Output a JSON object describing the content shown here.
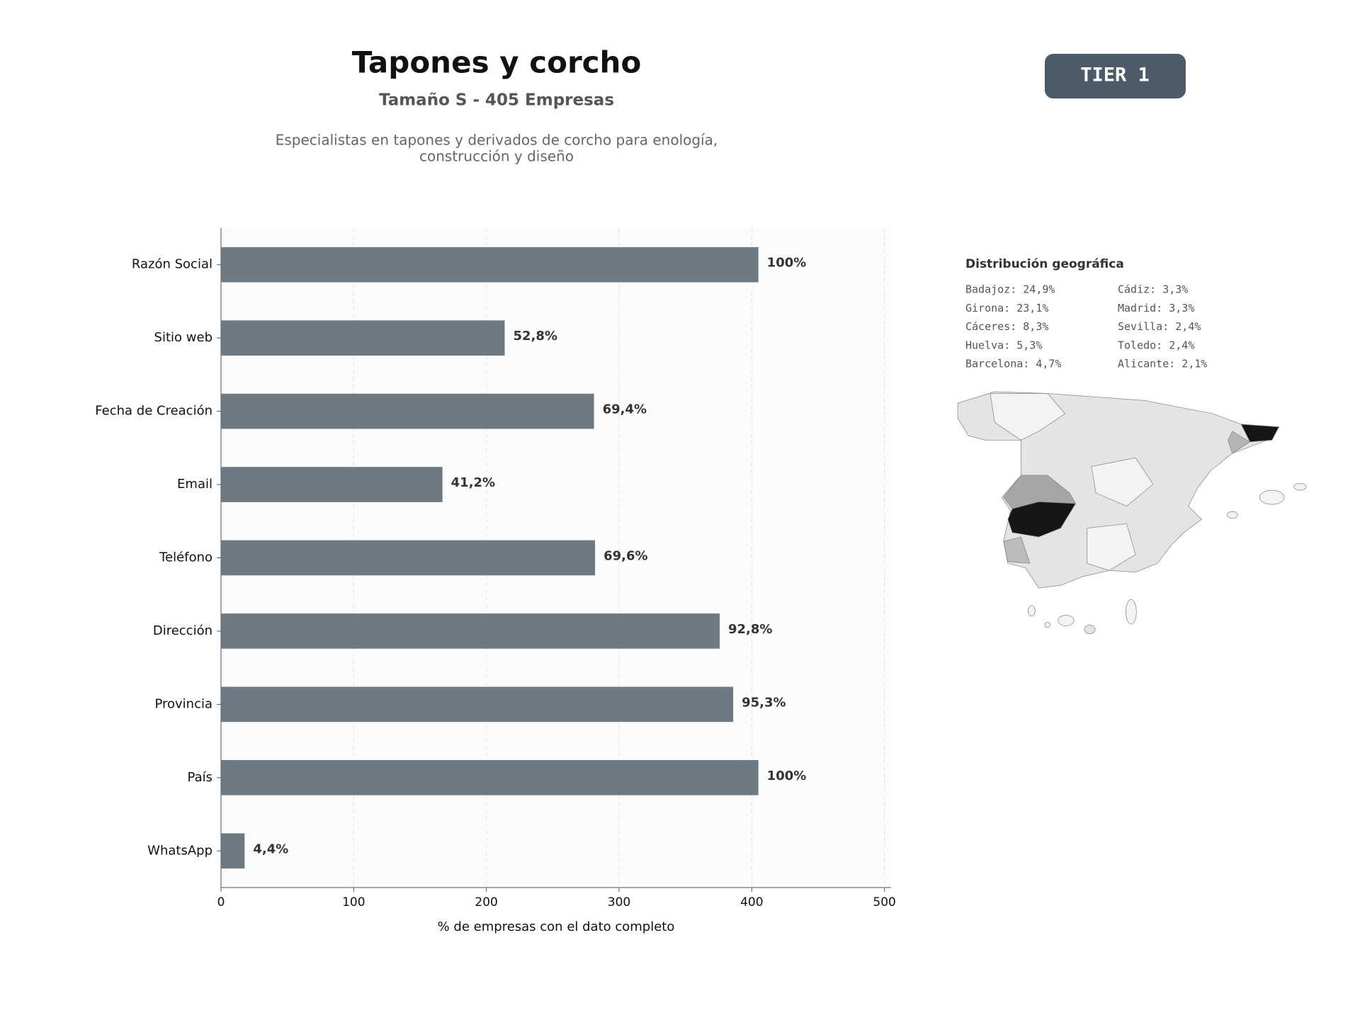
{
  "chart_data": {
    "type": "bar",
    "orientation": "horizontal",
    "title": "Tapones y corcho",
    "subtitle": "Tamaño S - 405 Empresas",
    "description": [
      "Especialistas en tapones y derivados de corcho para enología,",
      "construcción y diseño"
    ],
    "badge": "TIER 1",
    "xlabel": "% de empresas con el dato completo",
    "categories": [
      "Razón Social",
      "Sitio web",
      "Fecha de Creación",
      "Email",
      "Teléfono",
      "Dirección",
      "Provincia",
      "País",
      "WhatsApp"
    ],
    "values": [
      405,
      213.8,
      281.1,
      166.9,
      281.9,
      375.8,
      386.0,
      405,
      17.8
    ],
    "value_labels": [
      "100%",
      "52,8%",
      "69,4%",
      "41,2%",
      "69,6%",
      "92,8%",
      "95,3%",
      "100%",
      "4,4%"
    ],
    "color": "#6e7a83",
    "xlim": [
      0,
      505
    ],
    "xticks": [
      0,
      100,
      200,
      300,
      400,
      500
    ],
    "grid": true,
    "map": {
      "title": "Distribución geográfica",
      "items": [
        "Badajoz: 24,9%",
        "Girona: 23,1%",
        "Cáceres: 8,3%",
        "Huelva: 5,3%",
        "Barcelona: 4,7%",
        "Cádiz: 3,3%",
        "Madrid: 3,3%",
        "Sevilla: 2,4%",
        "Toledo: 2,4%",
        "Alicante: 2,1%"
      ]
    }
  }
}
